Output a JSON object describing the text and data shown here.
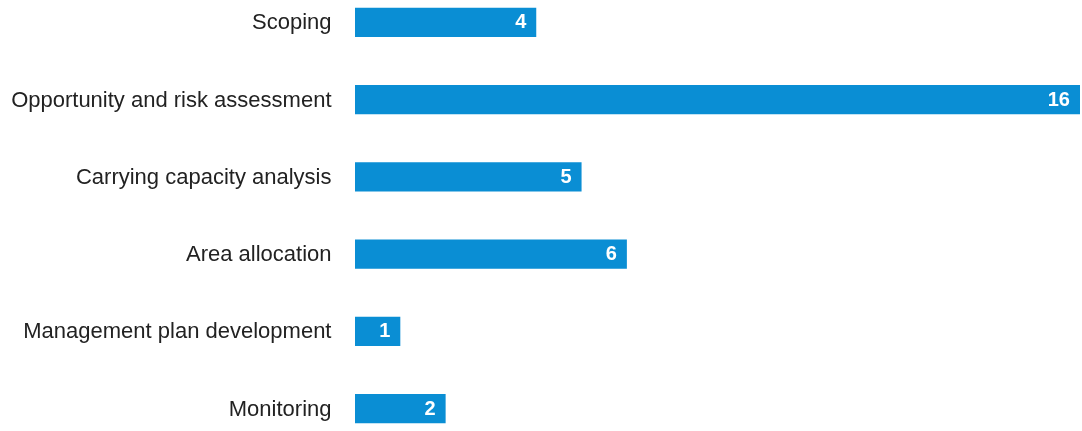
{
  "chart_data": {
    "type": "bar",
    "orientation": "horizontal",
    "categories": [
      "Scoping",
      "Opportunity and risk assessment",
      "Carrying capacity analysis",
      "Area allocation",
      "Management plan development",
      "Monitoring"
    ],
    "values": [
      4,
      16,
      5,
      6,
      1,
      2
    ],
    "color": "#0a8ed4",
    "data_labels": true
  }
}
